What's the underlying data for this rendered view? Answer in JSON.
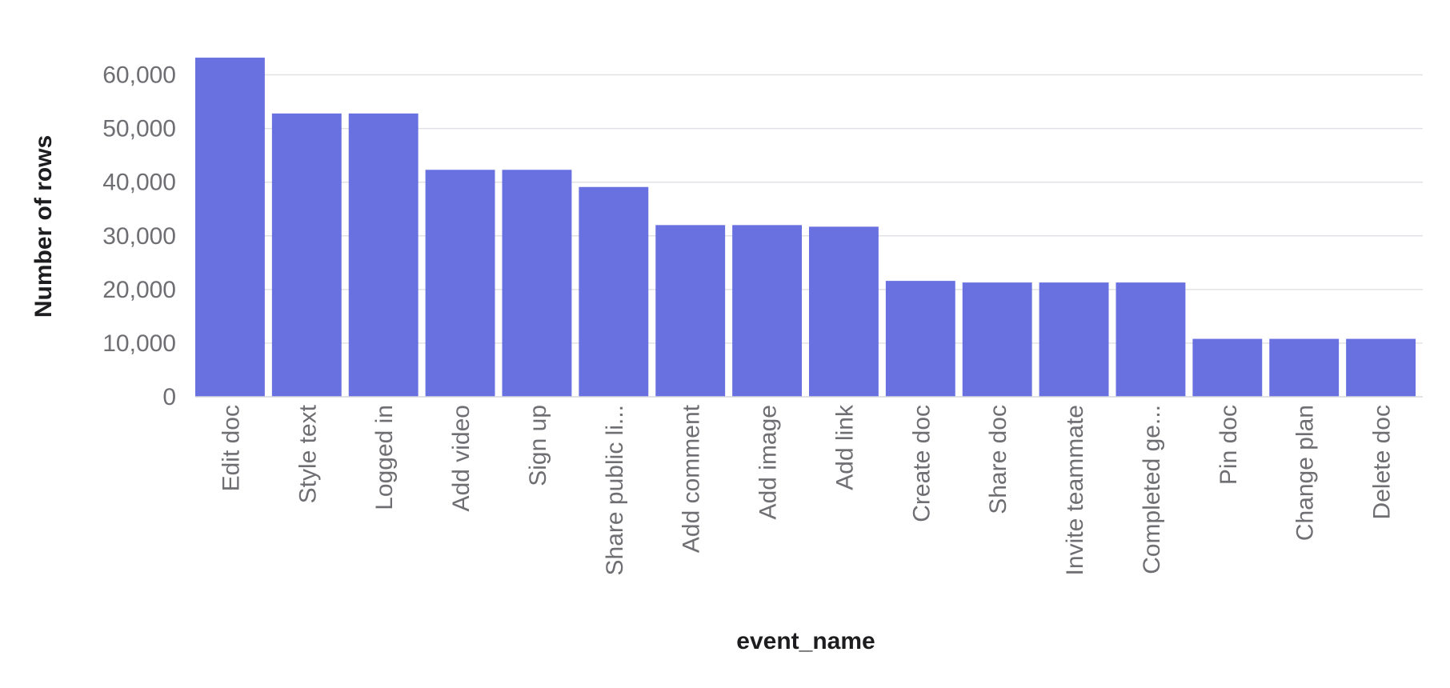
{
  "chart_data": {
    "type": "bar",
    "title": "",
    "xlabel": "event_name",
    "ylabel": "Number of rows",
    "categories": [
      "Edit doc",
      "Style text",
      "Logged in",
      "Add video",
      "Sign up",
      "Share public li...",
      "Add comment",
      "Add image",
      "Add link",
      "Create doc",
      "Share doc",
      "Invite teammate",
      "Completed ge...",
      "Pin doc",
      "Change plan",
      "Delete doc"
    ],
    "values": [
      63200,
      52800,
      52800,
      42300,
      42300,
      39100,
      32000,
      32000,
      31700,
      21600,
      21300,
      21300,
      21300,
      10800,
      10800,
      10800
    ],
    "ylim": [
      0,
      65000
    ],
    "yticks": [
      0,
      10000,
      20000,
      30000,
      40000,
      50000,
      60000
    ],
    "ytick_labels": [
      "0",
      "10,000",
      "20,000",
      "30,000",
      "40,000",
      "50,000",
      "60,000"
    ],
    "grid": true,
    "legend": "none",
    "bar_color": "#6970e0"
  }
}
